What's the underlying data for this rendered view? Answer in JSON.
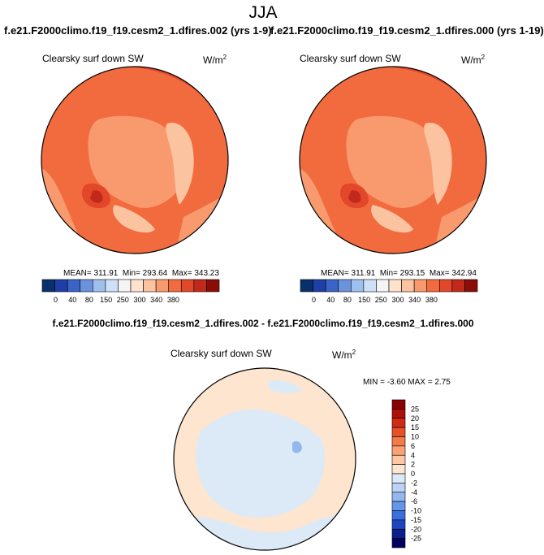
{
  "chart_data": [
    {
      "type": "heatmap",
      "projection": "north-polar-stereographic",
      "title": "Clearsky surf down SW",
      "units_base": "W/m",
      "units_exp": "2",
      "case": "f.e21.F2000climo.f19_f19.cesm2_1.dfires.002 (yrs 1-9)",
      "stats": {
        "mean": "311.91",
        "min": "293.64",
        "max": "343.23"
      },
      "mean_label": "MEAN=",
      "min_label": "Min=",
      "max_label": "Max=",
      "colorbar": {
        "orientation": "horizontal",
        "levels": [
          "0",
          "40",
          "80",
          "150",
          "250",
          "300",
          "340",
          "380"
        ],
        "colors": [
          "#08306b",
          "#1f3fa8",
          "#3a64c8",
          "#6a92dd",
          "#9ec0ee",
          "#cde0f7",
          "#f5f5f5",
          "#fde3cf",
          "#fbc3a0",
          "#f89a6e",
          "#f26b3e",
          "#e2472a",
          "#c12a1a",
          "#8c0d08"
        ]
      }
    },
    {
      "type": "heatmap",
      "projection": "north-polar-stereographic",
      "title": "Clearsky surf down SW",
      "units_base": "W/m",
      "units_exp": "2",
      "case": "f.e21.F2000climo.f19_f19.cesm2_1.dfires.000 (yrs 1-19)",
      "stats": {
        "mean": "311.91",
        "min": "293.15",
        "max": "342.94"
      },
      "mean_label": "MEAN=",
      "min_label": "Min=",
      "max_label": "Max=",
      "colorbar": {
        "orientation": "horizontal",
        "levels": [
          "0",
          "40",
          "80",
          "150",
          "250",
          "300",
          "340",
          "380"
        ],
        "colors": [
          "#08306b",
          "#1f3fa8",
          "#3a64c8",
          "#6a92dd",
          "#9ec0ee",
          "#cde0f7",
          "#f5f5f5",
          "#fde3cf",
          "#fbc3a0",
          "#f89a6e",
          "#f26b3e",
          "#e2472a",
          "#c12a1a",
          "#8c0d08"
        ]
      }
    },
    {
      "type": "heatmap",
      "projection": "north-polar-stereographic",
      "title": "Clearsky surf down SW",
      "units_base": "W/m",
      "units_exp": "2",
      "case": "f.e21.F2000climo.f19_f19.cesm2_1.dfires.002 - f.e21.F2000climo.f19_f19.cesm2_1.dfires.000",
      "stats": {
        "min": "-3.60",
        "max": "2.75"
      },
      "stats_line": "MIN = -3.60 MAX = 2.75",
      "colorbar": {
        "orientation": "vertical",
        "levels": [
          "25",
          "20",
          "15",
          "10",
          "6",
          "4",
          "2",
          "0",
          "-2",
          "-4",
          "-6",
          "-10",
          "-15",
          "-20",
          "-25"
        ],
        "colors": [
          "#8b0000",
          "#b00f0a",
          "#d22b15",
          "#e8502b",
          "#f57a4a",
          "#fba172",
          "#fcc7a4",
          "#fde5cf",
          "#dceaf8",
          "#bcd3f3",
          "#93b7ee",
          "#6496ea",
          "#3a6fe0",
          "#1f46c0",
          "#0a1e8c",
          "#000060"
        ]
      }
    }
  ],
  "figure": {
    "title": "JJA",
    "case_a": "f.e21.F2000climo.f19_f19.cesm2_1.dfires.002 (yrs 1-9)",
    "case_b": "f.e21.F2000climo.f19_f19.cesm2_1.dfires.000 (yrs 1-19)",
    "diff_title": "f.e21.F2000climo.f19_f19.cesm2_1.dfires.002 - f.e21.F2000climo.f19_f19.cesm2_1.dfires.000"
  }
}
